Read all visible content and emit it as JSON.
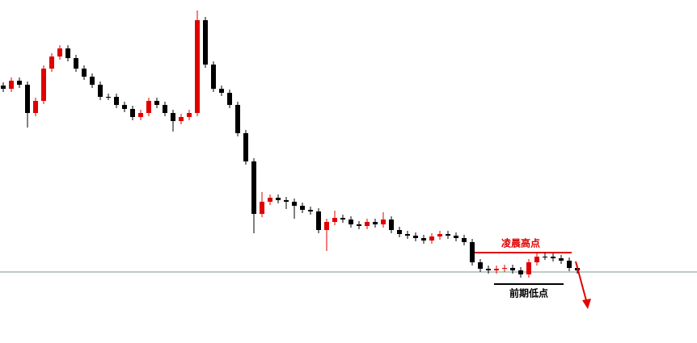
{
  "chart_data": {
    "type": "candlestick",
    "up_color": "#e00000",
    "down_color": "#000000",
    "ylim": [
      0,
      421
    ],
    "open": [
      315,
      311,
      321,
      316,
      281,
      296,
      336,
      351,
      361,
      349,
      336,
      326,
      316,
      301,
      301,
      291,
      286,
      276,
      281,
      296,
      291,
      281,
      271,
      276,
      281,
      396,
      341,
      311,
      306,
      291,
      256,
      221,
      156,
      171,
      176,
      173,
      171,
      166,
      161,
      159,
      136,
      146,
      151,
      149,
      143,
      141,
      146,
      143,
      149,
      136,
      131,
      129,
      126,
      123,
      128,
      131,
      129,
      126,
      121,
      96,
      88,
      86,
      88,
      89,
      86,
      81,
      96,
      103,
      103,
      101,
      98,
      89
    ],
    "high": [
      319,
      325,
      325,
      320,
      300,
      340,
      355,
      365,
      365,
      353,
      340,
      330,
      320,
      305,
      305,
      295,
      290,
      285,
      300,
      300,
      295,
      285,
      280,
      285,
      408,
      400,
      345,
      315,
      310,
      295,
      260,
      225,
      183,
      180,
      180,
      177,
      175,
      170,
      165,
      163,
      150,
      160,
      155,
      153,
      147,
      150,
      150,
      158,
      153,
      140,
      135,
      133,
      130,
      132,
      135,
      135,
      133,
      130,
      125,
      100,
      92,
      92,
      93,
      93,
      90,
      100,
      108,
      108,
      107,
      105,
      102,
      93
    ],
    "low": [
      307,
      307,
      312,
      263,
      277,
      292,
      332,
      347,
      345,
      332,
      322,
      312,
      297,
      297,
      287,
      282,
      272,
      272,
      277,
      287,
      277,
      258,
      267,
      272,
      277,
      337,
      307,
      302,
      287,
      252,
      217,
      132,
      152,
      167,
      169,
      162,
      150,
      157,
      155,
      132,
      110,
      142,
      145,
      139,
      137,
      137,
      139,
      139,
      132,
      127,
      125,
      122,
      119,
      119,
      124,
      125,
      122,
      117,
      92,
      84,
      82,
      82,
      84,
      82,
      77,
      77,
      92,
      99,
      97,
      94,
      85,
      82
    ],
    "close": [
      311,
      321,
      316,
      281,
      296,
      336,
      351,
      361,
      349,
      336,
      326,
      316,
      301,
      301,
      291,
      286,
      276,
      281,
      296,
      291,
      281,
      271,
      276,
      281,
      396,
      341,
      311,
      306,
      291,
      256,
      221,
      156,
      171,
      176,
      173,
      171,
      166,
      161,
      159,
      136,
      146,
      151,
      149,
      143,
      141,
      146,
      143,
      149,
      136,
      131,
      129,
      126,
      123,
      128,
      131,
      129,
      126,
      121,
      96,
      88,
      86,
      88,
      89,
      86,
      81,
      96,
      103,
      103,
      101,
      98,
      89,
      86
    ],
    "hline": {
      "value": 84,
      "color": "#7a9a88"
    },
    "annotations": [
      {
        "label": "凌晨高点",
        "value": 108,
        "from": 58,
        "to": 70,
        "color": "#e00000"
      },
      {
        "label": "前期低点",
        "value": 69,
        "from": 61,
        "to": 69,
        "color": "#000000"
      }
    ]
  }
}
